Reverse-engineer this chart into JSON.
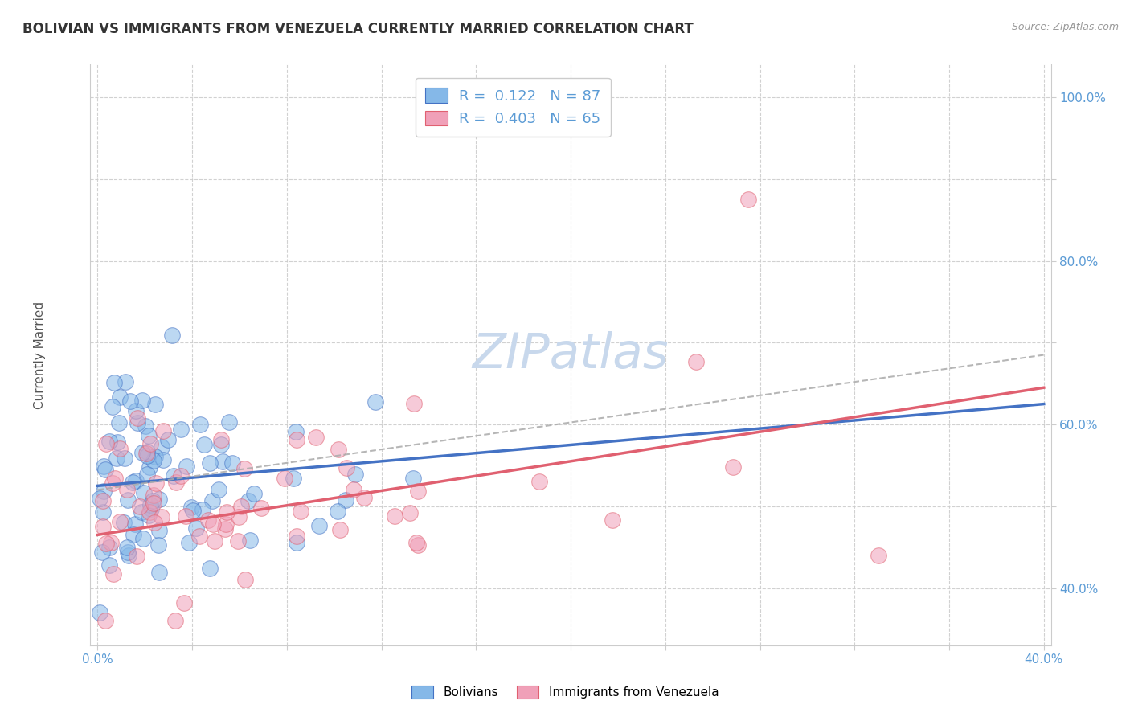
{
  "title": "BOLIVIAN VS IMMIGRANTS FROM VENEZUELA CURRENTLY MARRIED CORRELATION CHART",
  "source_text": "Source: ZipAtlas.com",
  "xlabel": "",
  "ylabel": "Currently Married",
  "xlim": [
    -0.003,
    0.403
  ],
  "ylim": [
    0.33,
    1.04
  ],
  "xtick_positions": [
    0.0,
    0.04,
    0.08,
    0.12,
    0.16,
    0.2,
    0.24,
    0.28,
    0.32,
    0.36,
    0.4
  ],
  "xticklabels": [
    "0.0%",
    "",
    "",
    "",
    "",
    "",
    "",
    "",
    "",
    "",
    "40.0%"
  ],
  "ytick_positions": [
    0.4,
    0.5,
    0.6,
    0.7,
    0.8,
    0.9,
    1.0
  ],
  "yticklabels": [
    "40.0%",
    "",
    "60.0%",
    "",
    "80.0%",
    "",
    "100.0%"
  ],
  "legend_line1": "R =  0.122   N = 87",
  "legend_line2": "R =  0.403   N = 65",
  "blue_color": "#85B8E8",
  "pink_color": "#F0A0B8",
  "blue_line_color": "#4472C4",
  "pink_line_color": "#E06070",
  "dash_line_color": "#AAAAAA",
  "watermark": "ZIPatlas",
  "title_fontsize": 12,
  "axis_label_fontsize": 11,
  "tick_fontsize": 11,
  "watermark_fontsize": 44,
  "watermark_color": "#C8D8EC",
  "background_color": "#FFFFFF",
  "grid_color": "#CCCCCC",
  "blue_trend_x0": 0.0,
  "blue_trend_y0": 0.525,
  "blue_trend_x1": 0.4,
  "blue_trend_y1": 0.625,
  "pink_trend_x0": 0.0,
  "pink_trend_y0": 0.465,
  "pink_trend_x1": 0.4,
  "pink_trend_y1": 0.645,
  "dash_trend_x0": 0.0,
  "dash_trend_y0": 0.52,
  "dash_trend_x1": 0.4,
  "dash_trend_y1": 0.685
}
